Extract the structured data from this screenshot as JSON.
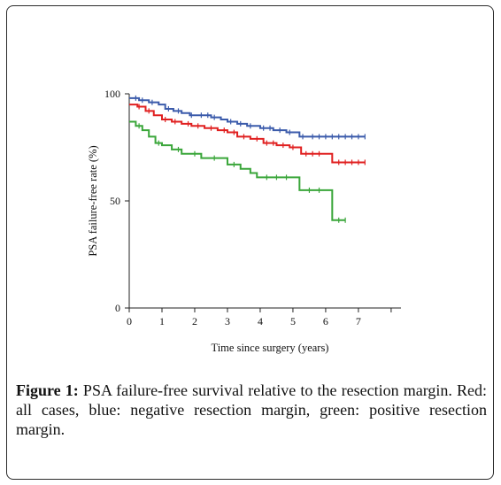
{
  "figure": {
    "caption_label": "Figure 1:",
    "caption_text": " PSA failure-free survival relative to the resection margin. Red: all cases, blue: negative resection margin, green: positive resection margin."
  },
  "chart_data": {
    "type": "line",
    "step": true,
    "title": "",
    "xlabel": "Time since surgery (years)",
    "ylabel": "PSA failure-free rate (%)",
    "xlim": [
      0,
      8.3
    ],
    "ylim": [
      0,
      100
    ],
    "xticks": [
      0,
      1,
      2,
      3,
      4,
      5,
      6,
      7,
      8
    ],
    "xtick_labels": [
      "0",
      "1",
      "2",
      "3",
      "4",
      "5",
      "6",
      "7",
      ""
    ],
    "yticks": [
      0,
      50,
      100
    ],
    "ytick_labels": [
      "0",
      "50",
      "100"
    ],
    "grid": false,
    "legend": "none",
    "series": [
      {
        "color": "#3b5bab",
        "x": [
          0,
          0.3,
          0.6,
          0.9,
          1.1,
          1.35,
          1.6,
          1.85,
          2.1,
          2.5,
          2.8,
          3.0,
          3.3,
          3.6,
          4.0,
          4.4,
          4.8,
          5.2,
          5.5,
          6.0,
          7.2
        ],
        "y": [
          98,
          97,
          96,
          95,
          93,
          92,
          91,
          90,
          90,
          89,
          88,
          87,
          86,
          85,
          84,
          83,
          82,
          80,
          80,
          80,
          80
        ],
        "censor_x": [
          0.2,
          0.4,
          0.7,
          1.2,
          1.5,
          1.9,
          2.2,
          2.4,
          2.6,
          3.1,
          3.4,
          3.7,
          4.1,
          4.3,
          4.6,
          4.9,
          5.3,
          5.6,
          5.8,
          6.0,
          6.2,
          6.4,
          6.6,
          6.8,
          7.0,
          7.2
        ]
      },
      {
        "color": "#e02020",
        "x": [
          0,
          0.25,
          0.5,
          0.75,
          1.0,
          1.3,
          1.6,
          1.9,
          2.3,
          2.7,
          3.0,
          3.3,
          3.7,
          4.1,
          4.5,
          4.9,
          5.25,
          5.9,
          6.2,
          7.2
        ],
        "y": [
          95,
          94,
          92,
          90,
          88,
          87,
          86,
          85,
          84,
          83,
          82,
          80,
          79,
          77,
          76,
          75,
          72,
          72,
          68,
          68
        ],
        "censor_x": [
          0.3,
          0.6,
          1.1,
          1.4,
          1.8,
          2.1,
          2.5,
          2.9,
          3.2,
          3.5,
          3.9,
          4.2,
          4.4,
          4.7,
          5.0,
          5.4,
          5.6,
          5.8,
          6.4,
          6.6,
          6.8,
          7.0,
          7.2
        ]
      },
      {
        "color": "#3aa63a",
        "x": [
          0,
          0.2,
          0.4,
          0.6,
          0.8,
          1.0,
          1.3,
          1.6,
          2.2,
          3.0,
          3.4,
          3.7,
          3.9,
          5.2,
          6.2,
          6.6
        ],
        "y": [
          87,
          85,
          83,
          80,
          77,
          76,
          74,
          72,
          70,
          67,
          65,
          63,
          61,
          55,
          41,
          41
        ],
        "censor_x": [
          0.3,
          0.9,
          1.5,
          2.0,
          2.6,
          3.2,
          4.2,
          4.5,
          4.8,
          5.5,
          5.8,
          6.4,
          6.6
        ]
      }
    ]
  }
}
